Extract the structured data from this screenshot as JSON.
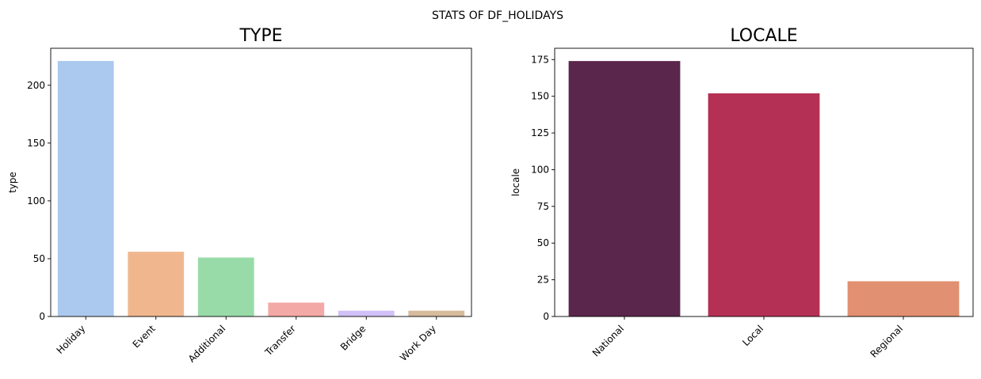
{
  "figure": {
    "suptitle": "STATS OF DF_HOLIDAYS"
  },
  "chart_data": [
    {
      "type": "bar",
      "title": "TYPE",
      "xlabel": "",
      "ylabel": "type",
      "categories": [
        "Holiday",
        "Event",
        "Additional",
        "Transfer",
        "Bridge",
        "Work Day"
      ],
      "values": [
        221,
        56,
        51,
        12,
        5,
        5
      ],
      "colors": [
        "#abc9ee",
        "#f0b78f",
        "#98dba8",
        "#f3a9a5",
        "#d1c0f7",
        "#d6bb9c"
      ],
      "ylim": [
        0,
        232
      ],
      "yticks": [
        0,
        50,
        100,
        150,
        200
      ],
      "grid": false,
      "legend": "none"
    },
    {
      "type": "bar",
      "title": "LOCALE",
      "xlabel": "",
      "ylabel": "locale",
      "categories": [
        "National",
        "Local",
        "Regional"
      ],
      "values": [
        174,
        152,
        24
      ],
      "colors": [
        "#5a264c",
        "#b53055",
        "#e19071"
      ],
      "ylim": [
        0,
        182.7
      ],
      "yticks": [
        0,
        25,
        50,
        75,
        100,
        125,
        150,
        175
      ],
      "grid": false,
      "legend": "none"
    }
  ]
}
